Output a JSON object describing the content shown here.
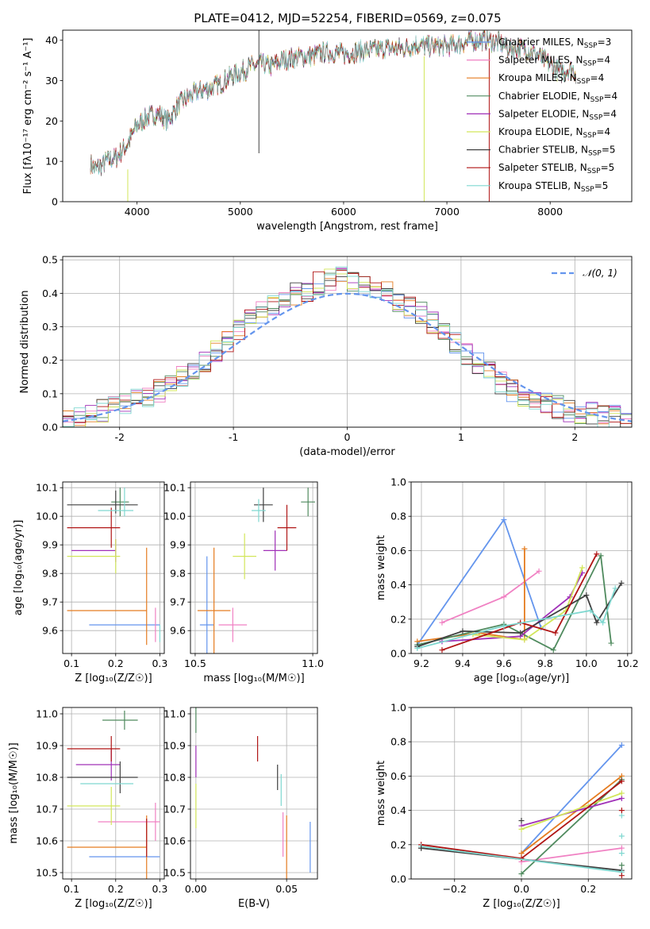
{
  "figure": {
    "title": "PLATE=0412, MJD=52254, FIBERID=0569, z=0.075"
  },
  "chart_data": [
    {
      "id": "spectrum",
      "type": "line",
      "xlabel": "wavelength [Angstrom, rest frame]",
      "ylabel": "Flux [fλ10⁻¹⁷ erg cm⁻² s⁻¹ A⁻¹]",
      "xlim": [
        3280,
        8790
      ],
      "ylim": [
        0,
        42.5
      ],
      "xticks": [
        4000,
        5000,
        6000,
        7000,
        8000
      ],
      "yticks": [
        0,
        10,
        20,
        30,
        40
      ],
      "grid": false,
      "legend_position": "top-right",
      "continuum": {
        "x": [
          3550,
          3600,
          3700,
          3800,
          3900,
          4000,
          4100,
          4200,
          4300,
          4400,
          4500,
          4600,
          4700,
          4800,
          4900,
          5000,
          5100,
          5200,
          5300,
          5400,
          5500,
          5600,
          5700,
          5800,
          5900,
          6000,
          6100,
          6200,
          6300,
          6400,
          6500,
          6600,
          6700,
          6800,
          6900,
          7000,
          7100,
          7200,
          7300,
          7400,
          7500,
          7600,
          7700,
          7800,
          7900,
          8000,
          8100,
          8200,
          8250
        ],
        "y": [
          9.5,
          8,
          10,
          11,
          14,
          19,
          21,
          22,
          20,
          24,
          26,
          27.5,
          28,
          29,
          31,
          32,
          33.5,
          34,
          33.5,
          35,
          35.5,
          36,
          36,
          37,
          37,
          36.5,
          37,
          37.5,
          37.5,
          38,
          38,
          38,
          39,
          38.5,
          38.5,
          38.5,
          39,
          39.5,
          40,
          40,
          39.5,
          38,
          38,
          37.5,
          36,
          34,
          32,
          33,
          32
        ]
      },
      "series": [
        {
          "name": "Chabrier MILES, N",
          "sub": "SSP",
          "suffix": "=3",
          "color": "#6495ed"
        },
        {
          "name": "Salpeter MILES, N",
          "sub": "SSP",
          "suffix": "=4",
          "color": "#f081c3"
        },
        {
          "name": "Kroupa MILES, N",
          "sub": "SSP",
          "suffix": "=4",
          "color": "#e57c20"
        },
        {
          "name": "Chabrier ELODIE, N",
          "sub": "SSP",
          "suffix": "=4",
          "color": "#4f8a5e"
        },
        {
          "name": "Salpeter ELODIE, N",
          "sub": "SSP",
          "suffix": "=4",
          "color": "#a030b8"
        },
        {
          "name": "Kroupa ELODIE, N",
          "sub": "SSP",
          "suffix": "=4",
          "color": "#d2e65a"
        },
        {
          "name": "Chabrier STELIB, N",
          "sub": "SSP",
          "suffix": "=5",
          "color": "#404040"
        },
        {
          "name": "Salpeter STELIB, N",
          "sub": "SSP",
          "suffix": "=5",
          "color": "#b01515"
        },
        {
          "name": "Kroupa STELIB, N",
          "sub": "SSP",
          "suffix": "=5",
          "color": "#7fd8d0"
        }
      ]
    },
    {
      "id": "residuals",
      "type": "histogram",
      "xlabel": "(data-model)/error",
      "ylabel": "Normed distribution",
      "xlim": [
        -2.5,
        2.5
      ],
      "ylim": [
        0,
        0.51
      ],
      "xticks": [
        -2,
        -1,
        0,
        1,
        2
      ],
      "yticks": [
        0.0,
        0.1,
        0.2,
        0.3,
        0.4,
        0.5
      ],
      "grid": true,
      "legend": "𝒩(0, 1)",
      "legend_position": "top-right",
      "reference_curve": "normal pdf, mean 0, sd 1",
      "reference_color": "#6495ed",
      "bin_width": 0.1,
      "envelope": [
        0.02,
        0.03,
        0.04,
        0.05,
        0.06,
        0.07,
        0.08,
        0.09,
        0.11,
        0.13,
        0.15,
        0.17,
        0.2,
        0.23,
        0.26,
        0.29,
        0.32,
        0.34,
        0.36,
        0.38,
        0.4,
        0.41,
        0.43,
        0.44,
        0.45,
        0.44,
        0.43,
        0.41,
        0.4,
        0.38,
        0.36,
        0.34,
        0.31,
        0.28,
        0.25,
        0.22,
        0.19,
        0.16,
        0.13,
        0.11,
        0.09,
        0.08,
        0.07,
        0.06,
        0.05,
        0.04,
        0.04,
        0.03,
        0.03,
        0.02
      ]
    },
    {
      "id": "age_vs_Z",
      "type": "errorbar",
      "xlabel": "Z [log₁₀(Z/Z☉)]",
      "ylabel": "age  [log₁₀(age/yr)]",
      "xlim": [
        0.08,
        0.31
      ],
      "ylim": [
        9.52,
        10.12
      ],
      "xticks": [
        0.1,
        0.2,
        0.3
      ],
      "yticks": [
        9.6,
        9.7,
        9.8,
        9.9,
        10.0,
        10.1
      ],
      "grid": true,
      "points": [
        {
          "x": 0.22,
          "xerr": 0.08,
          "y": 9.62,
          "yerr": 0.0,
          "color": "#6495ed"
        },
        {
          "x": 0.29,
          "xerr": 0.0,
          "y": 9.62,
          "yerr": 0.06,
          "color": "#f081c3"
        },
        {
          "x": 0.27,
          "xerr": 0.0,
          "y": 9.72,
          "yerr": 0.17,
          "color": "#e57c20"
        },
        {
          "x": 0.18,
          "xerr": 0.09,
          "y": 9.67,
          "yerr": 0.0,
          "color": "#e57c20"
        },
        {
          "x": 0.21,
          "xerr": 0.02,
          "y": 10.05,
          "yerr": 0.05,
          "color": "#4f8a5e"
        },
        {
          "x": 0.15,
          "xerr": 0.05,
          "y": 9.88,
          "yerr": 0.0,
          "color": "#a030b8"
        },
        {
          "x": 0.2,
          "xerr": 0.0,
          "y": 9.88,
          "yerr": 0.04,
          "color": "#a030b8"
        },
        {
          "x": 0.15,
          "xerr": 0.06,
          "y": 9.86,
          "yerr": 0.0,
          "color": "#d2e65a"
        },
        {
          "x": 0.2,
          "xerr": 0.0,
          "y": 9.86,
          "yerr": 0.06,
          "color": "#d2e65a"
        },
        {
          "x": 0.17,
          "xerr": 0.08,
          "y": 10.04,
          "yerr": 0.0,
          "color": "#404040"
        },
        {
          "x": 0.2,
          "xerr": 0.0,
          "y": 10.05,
          "yerr": 0.04,
          "color": "#404040"
        },
        {
          "x": 0.15,
          "xerr": 0.06,
          "y": 9.96,
          "yerr": 0.0,
          "color": "#b01515"
        },
        {
          "x": 0.19,
          "xerr": 0.0,
          "y": 9.96,
          "yerr": 0.07,
          "color": "#b01515"
        },
        {
          "x": 0.2,
          "xerr": 0.04,
          "y": 10.02,
          "yerr": 0.0,
          "color": "#7fd8d0"
        },
        {
          "x": 0.22,
          "xerr": 0.0,
          "y": 10.05,
          "yerr": 0.05,
          "color": "#7fd8d0"
        },
        {
          "x": 0.3,
          "xerr": 0.0,
          "y": 9.59,
          "yerr": 0.03,
          "color": "#7fd8d0"
        }
      ]
    },
    {
      "id": "age_vs_mass",
      "type": "errorbar",
      "xlabel": "mass [log₁₀(M/M☉)]",
      "ylabel": "",
      "xlim": [
        10.48,
        11.02
      ],
      "ylim": [
        9.52,
        10.12
      ],
      "xticks": [
        10.5,
        11.0
      ],
      "yticks": [
        9.6,
        9.7,
        9.8,
        9.9,
        10.0,
        10.1
      ],
      "grid": true,
      "points": [
        {
          "x": 10.55,
          "xerr": 0.03,
          "y": 9.62,
          "yerr": 0.24,
          "color": "#6495ed"
        },
        {
          "x": 10.66,
          "xerr": 0.06,
          "y": 9.62,
          "yerr": 0.06,
          "color": "#f081c3"
        },
        {
          "x": 10.58,
          "xerr": 0.07,
          "y": 9.67,
          "yerr": 0.22,
          "color": "#e57c20"
        },
        {
          "x": 10.98,
          "xerr": 0.03,
          "y": 10.05,
          "yerr": 0.05,
          "color": "#4f8a5e"
        },
        {
          "x": 10.84,
          "xerr": 0.05,
          "y": 9.88,
          "yerr": 0.07,
          "color": "#a030b8"
        },
        {
          "x": 10.71,
          "xerr": 0.05,
          "y": 9.86,
          "yerr": 0.08,
          "color": "#d2e65a"
        },
        {
          "x": 10.79,
          "xerr": 0.04,
          "y": 10.04,
          "yerr": 0.06,
          "color": "#404040"
        },
        {
          "x": 10.89,
          "xerr": 0.04,
          "y": 9.96,
          "yerr": 0.08,
          "color": "#b01515"
        },
        {
          "x": 10.77,
          "xerr": 0.03,
          "y": 10.02,
          "yerr": 0.04,
          "color": "#7fd8d0"
        }
      ]
    },
    {
      "id": "weight_vs_age",
      "type": "line",
      "xlabel": "age  [log₁₀(age/yr)]",
      "ylabel": "mass weight",
      "xlim": [
        9.15,
        10.22
      ],
      "ylim": [
        0,
        1.0
      ],
      "xticks": [
        9.2,
        9.4,
        9.6,
        9.8,
        10.0,
        10.2
      ],
      "yticks": [
        0.0,
        0.2,
        0.4,
        0.6,
        0.8,
        1.0
      ],
      "grid": true,
      "series": [
        {
          "color": "#6495ed",
          "x": [
            9.18,
            9.6,
            9.78
          ],
          "y": [
            0.05,
            0.78,
            0.15
          ]
        },
        {
          "color": "#f081c3",
          "x": [
            9.3,
            9.6,
            9.77
          ],
          "y": [
            0.18,
            0.33,
            0.48
          ]
        },
        {
          "color": "#e57c20",
          "x": [
            9.18,
            9.48,
            9.7,
            9.7
          ],
          "y": [
            0.07,
            0.12,
            0.08,
            0.61
          ]
        },
        {
          "color": "#4f8a5e",
          "x": [
            9.18,
            9.6,
            9.84,
            10.07,
            10.12
          ],
          "y": [
            0.05,
            0.17,
            0.02,
            0.57,
            0.06
          ]
        },
        {
          "color": "#a030b8",
          "x": [
            9.3,
            9.68,
            9.92,
            9.98
          ],
          "y": [
            0.07,
            0.1,
            0.33,
            0.47
          ]
        },
        {
          "color": "#d2e65a",
          "x": [
            9.45,
            9.7,
            9.9,
            9.98
          ],
          "y": [
            0.11,
            0.08,
            0.25,
            0.5
          ]
        },
        {
          "color": "#404040",
          "x": [
            9.18,
            9.4,
            9.68,
            10.0,
            10.05,
            10.17
          ],
          "y": [
            0.04,
            0.13,
            0.12,
            0.34,
            0.18,
            0.41
          ]
        },
        {
          "color": "#b01515",
          "x": [
            9.3,
            9.68,
            9.85,
            10.05
          ],
          "y": [
            0.02,
            0.18,
            0.12,
            0.58
          ]
        },
        {
          "color": "#7fd8d0",
          "x": [
            9.18,
            9.6,
            10.02,
            10.08,
            10.14
          ],
          "y": [
            0.03,
            0.16,
            0.25,
            0.18,
            0.38
          ]
        }
      ]
    },
    {
      "id": "mass_vs_Z",
      "type": "errorbar",
      "xlabel": "Z [log₁₀(Z/Z☉)]",
      "ylabel": "mass [log₁₀(M/M☉)]",
      "xlim": [
        0.08,
        0.31
      ],
      "ylim": [
        10.48,
        11.02
      ],
      "xticks": [
        0.1,
        0.2,
        0.3
      ],
      "yticks": [
        10.5,
        10.6,
        10.7,
        10.8,
        10.9,
        11.0
      ],
      "grid": true,
      "points": [
        {
          "x": 0.22,
          "xerr": 0.08,
          "y": 10.55,
          "yerr": 0.0,
          "color": "#6495ed"
        },
        {
          "x": 0.27,
          "xerr": 0.0,
          "y": 10.58,
          "yerr": 0.1,
          "color": "#e57c20"
        },
        {
          "x": 0.18,
          "xerr": 0.09,
          "y": 10.58,
          "yerr": 0.0,
          "color": "#e57c20"
        },
        {
          "x": 0.23,
          "xerr": 0.07,
          "y": 10.66,
          "yerr": 0.0,
          "color": "#f081c3"
        },
        {
          "x": 0.29,
          "xerr": 0.0,
          "y": 10.66,
          "yerr": 0.06,
          "color": "#f081c3"
        },
        {
          "x": 0.21,
          "xerr": 0.04,
          "y": 10.98,
          "yerr": 0.0,
          "color": "#4f8a5e"
        },
        {
          "x": 0.22,
          "xerr": 0.0,
          "y": 10.98,
          "yerr": 0.03,
          "color": "#4f8a5e"
        },
        {
          "x": 0.16,
          "xerr": 0.05,
          "y": 10.84,
          "yerr": 0.0,
          "color": "#a030b8"
        },
        {
          "x": 0.19,
          "xerr": 0.0,
          "y": 10.84,
          "yerr": 0.05,
          "color": "#a030b8"
        },
        {
          "x": 0.15,
          "xerr": 0.06,
          "y": 10.71,
          "yerr": 0.0,
          "color": "#d2e65a"
        },
        {
          "x": 0.19,
          "xerr": 0.0,
          "y": 10.71,
          "yerr": 0.06,
          "color": "#d2e65a"
        },
        {
          "x": 0.17,
          "xerr": 0.08,
          "y": 10.8,
          "yerr": 0.0,
          "color": "#404040"
        },
        {
          "x": 0.21,
          "xerr": 0.0,
          "y": 10.8,
          "yerr": 0.05,
          "color": "#404040"
        },
        {
          "x": 0.15,
          "xerr": 0.06,
          "y": 10.89,
          "yerr": 0.0,
          "color": "#b01515"
        },
        {
          "x": 0.19,
          "xerr": 0.0,
          "y": 10.89,
          "yerr": 0.04,
          "color": "#b01515"
        },
        {
          "x": 0.18,
          "xerr": 0.06,
          "y": 10.78,
          "yerr": 0.0,
          "color": "#7fd8d0"
        },
        {
          "x": 0.27,
          "xerr": 0.0,
          "y": 10.61,
          "yerr": 0.06,
          "color": "#b01515"
        }
      ]
    },
    {
      "id": "mass_vs_ebv",
      "type": "errorbar",
      "xlabel": "E(B-V)",
      "ylabel": "",
      "xlim": [
        -0.003,
        0.067
      ],
      "ylim": [
        10.48,
        11.02
      ],
      "xticks": [
        0.0,
        0.05
      ],
      "yticks": [
        10.5,
        10.6,
        10.7,
        10.8,
        10.9,
        11.0
      ],
      "grid": true,
      "points": [
        {
          "x": 0.063,
          "xerr": 0.0,
          "y": 10.58,
          "yerr": 0.08,
          "color": "#6495ed"
        },
        {
          "x": 0.05,
          "xerr": 0.0,
          "y": 10.58,
          "yerr": 0.1,
          "color": "#e57c20"
        },
        {
          "x": 0.048,
          "xerr": 0.0,
          "y": 10.62,
          "yerr": 0.07,
          "color": "#f081c3"
        },
        {
          "x": 0.0,
          "xerr": 0.0,
          "y": 10.98,
          "yerr": 0.04,
          "color": "#4f8a5e"
        },
        {
          "x": 0.0,
          "xerr": 0.0,
          "y": 10.85,
          "yerr": 0.05,
          "color": "#a030b8"
        },
        {
          "x": 0.0,
          "xerr": 0.0,
          "y": 10.71,
          "yerr": 0.07,
          "color": "#d2e65a"
        },
        {
          "x": 0.045,
          "xerr": 0.0,
          "y": 10.8,
          "yerr": 0.04,
          "color": "#404040"
        },
        {
          "x": 0.034,
          "xerr": 0.0,
          "y": 10.89,
          "yerr": 0.04,
          "color": "#b01515"
        },
        {
          "x": 0.047,
          "xerr": 0.0,
          "y": 10.76,
          "yerr": 0.05,
          "color": "#7fd8d0"
        }
      ]
    },
    {
      "id": "weight_vs_Z",
      "type": "line",
      "xlabel": "Z [log₁₀(Z/Z☉)]",
      "ylabel": "mass weight",
      "xlim": [
        -0.33,
        0.33
      ],
      "ylim": [
        0,
        1.0
      ],
      "xticks": [
        -0.2,
        0.0,
        0.2
      ],
      "yticks": [
        0.0,
        0.2,
        0.4,
        0.6,
        0.8,
        1.0
      ],
      "grid": true,
      "series": [
        {
          "color": "#6495ed",
          "x": [
            0.0,
            0.3
          ],
          "y": [
            0.15,
            0.78
          ]
        },
        {
          "color": "#f081c3",
          "x": [
            0.0,
            0.3
          ],
          "y": [
            0.1,
            0.18
          ]
        },
        {
          "color": "#e57c20",
          "x": [
            0.0,
            0.3
          ],
          "y": [
            0.15,
            0.6
          ]
        },
        {
          "color": "#4f8a5e",
          "x": [
            0.0,
            0.3
          ],
          "y": [
            0.03,
            0.58
          ]
        },
        {
          "color": "#a030b8",
          "x": [
            0.0,
            0.3
          ],
          "y": [
            0.31,
            0.47
          ]
        },
        {
          "color": "#d2e65a",
          "x": [
            0.0,
            0.3
          ],
          "y": [
            0.29,
            0.5
          ]
        },
        {
          "color": "#404040",
          "x": [
            -0.3,
            0.3
          ],
          "y": [
            0.18,
            0.05
          ]
        },
        {
          "color": "#b01515",
          "x": [
            -0.3,
            0.0,
            0.3
          ],
          "y": [
            0.2,
            0.12,
            0.57
          ]
        },
        {
          "color": "#7fd8d0",
          "x": [
            -0.3,
            0.3
          ],
          "y": [
            0.19,
            0.04
          ]
        }
      ],
      "markers": [
        {
          "color": "#404040",
          "x": -0.3,
          "y": 0.18
        },
        {
          "color": "#404040",
          "x": 0.0,
          "y": 0.34
        },
        {
          "color": "#7fd8d0",
          "x": 0.3,
          "y": 0.37
        },
        {
          "color": "#7fd8d0",
          "x": 0.3,
          "y": 0.25
        },
        {
          "color": "#7fd8d0",
          "x": 0.3,
          "y": 0.15
        },
        {
          "color": "#b01515",
          "x": 0.3,
          "y": 0.4
        },
        {
          "color": "#b01515",
          "x": 0.3,
          "y": 0.02
        },
        {
          "color": "#4f8a5e",
          "x": 0.3,
          "y": 0.08
        }
      ]
    }
  ]
}
